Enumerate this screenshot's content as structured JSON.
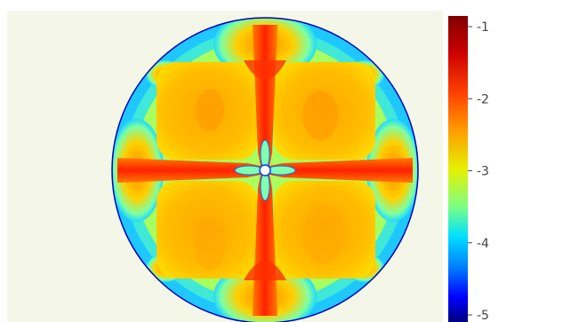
{
  "chart_data": {
    "type": "heatmap",
    "title": "",
    "xlabel": "",
    "ylabel": "",
    "colorscale": "jet",
    "colorbar": {
      "range": [
        -5,
        -1
      ],
      "ticks": [
        -1,
        -2,
        -3,
        -4,
        -5
      ],
      "tick_labels": [
        "-1",
        "-2",
        "-3",
        "-4",
        "-5"
      ],
      "placement": "right"
    },
    "regions": [
      {
        "name": "horizontal-cross-arm",
        "value": -1.8
      },
      {
        "name": "vertical-cross-arm",
        "value": -1.8
      },
      {
        "name": "quadrant-top-left",
        "value": -2.2
      },
      {
        "name": "quadrant-top-right",
        "value": -2.2
      },
      {
        "name": "quadrant-bottom-left",
        "value": -2.2
      },
      {
        "name": "quadrant-bottom-right",
        "value": -2.2
      },
      {
        "name": "outer-lobes",
        "value": -2.4
      },
      {
        "name": "rim",
        "value": -4.5
      },
      {
        "name": "center-hole",
        "value": -3.5
      }
    ],
    "grid": false,
    "background_color": "#f4f6e8"
  }
}
